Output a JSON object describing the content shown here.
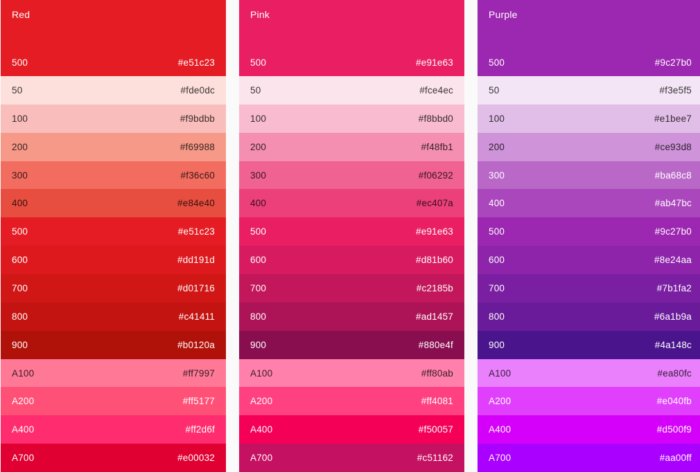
{
  "background": "#fafafa",
  "dark_text_color": "rgba(0,0,0,0.78)",
  "light_text_color": "#ffffff",
  "palettes": [
    {
      "name": "Red",
      "header": {
        "shade": "500",
        "hex": "#e51c23"
      },
      "shades": [
        {
          "shade": "50",
          "hex": "#fde0dc",
          "text": "dark"
        },
        {
          "shade": "100",
          "hex": "#f9bdbb",
          "text": "dark"
        },
        {
          "shade": "200",
          "hex": "#f69988",
          "text": "dark"
        },
        {
          "shade": "300",
          "hex": "#f36c60",
          "text": "dark"
        },
        {
          "shade": "400",
          "hex": "#e84e40",
          "text": "dark"
        },
        {
          "shade": "500",
          "hex": "#e51c23",
          "text": "light"
        },
        {
          "shade": "600",
          "hex": "#dd191d",
          "text": "light"
        },
        {
          "shade": "700",
          "hex": "#d01716",
          "text": "light"
        },
        {
          "shade": "800",
          "hex": "#c41411",
          "text": "light"
        },
        {
          "shade": "900",
          "hex": "#b0120a",
          "text": "light"
        },
        {
          "shade": "A100",
          "hex": "#ff7997",
          "text": "dark"
        },
        {
          "shade": "A200",
          "hex": "#ff5177",
          "text": "light"
        },
        {
          "shade": "A400",
          "hex": "#ff2d6f",
          "text": "light"
        },
        {
          "shade": "A700",
          "hex": "#e00032",
          "text": "light"
        }
      ]
    },
    {
      "name": "Pink",
      "header": {
        "shade": "500",
        "hex": "#e91e63"
      },
      "shades": [
        {
          "shade": "50",
          "hex": "#fce4ec",
          "text": "dark"
        },
        {
          "shade": "100",
          "hex": "#f8bbd0",
          "text": "dark"
        },
        {
          "shade": "200",
          "hex": "#f48fb1",
          "text": "dark"
        },
        {
          "shade": "300",
          "hex": "#f06292",
          "text": "dark"
        },
        {
          "shade": "400",
          "hex": "#ec407a",
          "text": "dark"
        },
        {
          "shade": "500",
          "hex": "#e91e63",
          "text": "light"
        },
        {
          "shade": "600",
          "hex": "#d81b60",
          "text": "light"
        },
        {
          "shade": "700",
          "hex": "#c2185b",
          "text": "light"
        },
        {
          "shade": "800",
          "hex": "#ad1457",
          "text": "light"
        },
        {
          "shade": "900",
          "hex": "#880e4f",
          "text": "light"
        },
        {
          "shade": "A100",
          "hex": "#ff80ab",
          "text": "dark"
        },
        {
          "shade": "A200",
          "hex": "#ff4081",
          "text": "light"
        },
        {
          "shade": "A400",
          "hex": "#f50057",
          "text": "light"
        },
        {
          "shade": "A700",
          "hex": "#c51162",
          "text": "light"
        }
      ]
    },
    {
      "name": "Purple",
      "header": {
        "shade": "500",
        "hex": "#9c27b0"
      },
      "shades": [
        {
          "shade": "50",
          "hex": "#f3e5f5",
          "text": "dark"
        },
        {
          "shade": "100",
          "hex": "#e1bee7",
          "text": "dark"
        },
        {
          "shade": "200",
          "hex": "#ce93d8",
          "text": "dark"
        },
        {
          "shade": "300",
          "hex": "#ba68c8",
          "text": "light"
        },
        {
          "shade": "400",
          "hex": "#ab47bc",
          "text": "light"
        },
        {
          "shade": "500",
          "hex": "#9c27b0",
          "text": "light"
        },
        {
          "shade": "600",
          "hex": "#8e24aa",
          "text": "light"
        },
        {
          "shade": "700",
          "hex": "#7b1fa2",
          "text": "light"
        },
        {
          "shade": "800",
          "hex": "#6a1b9a",
          "text": "light"
        },
        {
          "shade": "900",
          "hex": "#4a148c",
          "text": "light"
        },
        {
          "shade": "A100",
          "hex": "#ea80fc",
          "text": "dark"
        },
        {
          "shade": "A200",
          "hex": "#e040fb",
          "text": "light"
        },
        {
          "shade": "A400",
          "hex": "#d500f9",
          "text": "light"
        },
        {
          "shade": "A700",
          "hex": "#aa00ff",
          "text": "light"
        }
      ]
    }
  ]
}
